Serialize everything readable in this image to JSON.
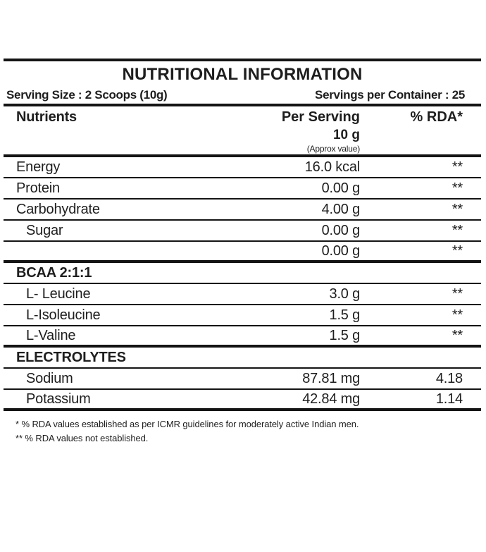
{
  "title": "NUTRITIONAL INFORMATION",
  "serving": {
    "size": "Serving Size : 2 Scoops (10g)",
    "per_container": "Servings per Container : 25"
  },
  "columns": {
    "nutrients": "Nutrients",
    "per_serving": "Per Serving",
    "amount": "10 g",
    "approx_note": "(Approx value)",
    "rda": "% RDA*"
  },
  "rows": [
    {
      "name": "Energy",
      "value": "16.0 kcal",
      "rda": "**",
      "indent": false,
      "section": false,
      "sep": "thin"
    },
    {
      "name": "Protein",
      "value": "0.00 g",
      "rda": "**",
      "indent": false,
      "section": false,
      "sep": "thin"
    },
    {
      "name": "Carbohydrate",
      "value": "4.00 g",
      "rda": "**",
      "indent": false,
      "section": false,
      "sep": "thin"
    },
    {
      "name": "Sugar",
      "value": "0.00 g",
      "rda": "**",
      "indent": true,
      "section": false,
      "sep": "thin"
    },
    {
      "name": "",
      "value": "0.00 g",
      "rda": "**",
      "indent": false,
      "section": false,
      "sep": "thick"
    },
    {
      "name": "BCAA 2:1:1",
      "value": "",
      "rda": "",
      "indent": false,
      "section": true,
      "sep": "thin"
    },
    {
      "name": "L- Leucine",
      "value": "3.0 g",
      "rda": "**",
      "indent": true,
      "section": false,
      "sep": "thin"
    },
    {
      "name": "L-Isoleucine",
      "value": "1.5 g",
      "rda": "**",
      "indent": true,
      "section": false,
      "sep": "thin"
    },
    {
      "name": "L-Valine",
      "value": "1.5 g",
      "rda": "**",
      "indent": true,
      "section": false,
      "sep": "thick"
    },
    {
      "name": "ELECTROLYTES",
      "value": "",
      "rda": "",
      "indent": false,
      "section": true,
      "sep": "thin"
    },
    {
      "name": "Sodium",
      "value": "87.81 mg",
      "rda": "4.18",
      "indent": true,
      "section": false,
      "sep": "thin"
    },
    {
      "name": "Potassium",
      "value": "42.84 mg",
      "rda": "1.14",
      "indent": true,
      "section": false,
      "sep": "thick"
    }
  ],
  "footnotes": [
    "* % RDA values established as per ICMR guidelines for moderately active Indian men.",
    "** % RDA values not established."
  ],
  "colors": {
    "text": "#1e1e1e",
    "rule": "#141414",
    "background": "#ffffff"
  }
}
